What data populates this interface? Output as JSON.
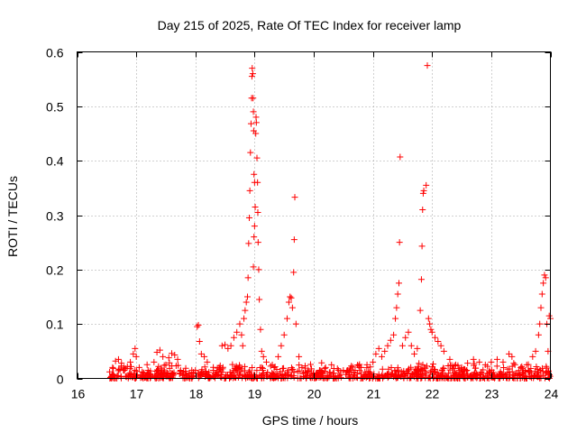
{
  "chart_data": {
    "type": "scatter",
    "title": "Day 215 of 2025, Rate Of TEC Index for receiver lamp",
    "xlabel": "GPS time / hours",
    "ylabel": "ROTI / TECUs",
    "xlim": [
      16,
      24
    ],
    "ylim": [
      0,
      0.6
    ],
    "xticks": [
      "16",
      "17",
      "18",
      "19",
      "20",
      "21",
      "22",
      "23",
      "24"
    ],
    "yticks": [
      "0",
      "0.1",
      "0.2",
      "0.3",
      "0.4",
      "0.5",
      "0.6"
    ],
    "grid": true,
    "legend": "none",
    "marker": "+",
    "color": "#ff0000",
    "series": [
      {
        "name": "ROTI",
        "points": [
          [
            16.55,
            0.012
          ],
          [
            16.6,
            0.02
          ],
          [
            16.65,
            0.032
          ],
          [
            16.7,
            0.035
          ],
          [
            16.75,
            0.028
          ],
          [
            16.8,
            0.015
          ],
          [
            16.85,
            0.022
          ],
          [
            16.9,
            0.03
          ],
          [
            16.95,
            0.045
          ],
          [
            16.98,
            0.055
          ],
          [
            17.0,
            0.04
          ],
          [
            17.05,
            0.02
          ],
          [
            17.1,
            0.012
          ],
          [
            17.2,
            0.015
          ],
          [
            17.3,
            0.03
          ],
          [
            17.35,
            0.048
          ],
          [
            17.4,
            0.052
          ],
          [
            17.45,
            0.04
          ],
          [
            17.5,
            0.025
          ],
          [
            17.55,
            0.038
          ],
          [
            17.6,
            0.046
          ],
          [
            17.65,
            0.043
          ],
          [
            17.7,
            0.035
          ],
          [
            17.75,
            0.015
          ],
          [
            17.8,
            0.012
          ],
          [
            17.9,
            0.01
          ],
          [
            18.0,
            0.015
          ],
          [
            18.03,
            0.095
          ],
          [
            18.05,
            0.098
          ],
          [
            18.07,
            0.068
          ],
          [
            18.1,
            0.045
          ],
          [
            18.15,
            0.04
          ],
          [
            18.2,
            0.03
          ],
          [
            18.3,
            0.015
          ],
          [
            18.4,
            0.02
          ],
          [
            18.45,
            0.06
          ],
          [
            18.5,
            0.062
          ],
          [
            18.55,
            0.055
          ],
          [
            18.6,
            0.06
          ],
          [
            18.65,
            0.075
          ],
          [
            18.7,
            0.085
          ],
          [
            18.75,
            0.1
          ],
          [
            18.78,
            0.08
          ],
          [
            18.8,
            0.06
          ],
          [
            18.82,
            0.11
          ],
          [
            18.84,
            0.125
          ],
          [
            18.86,
            0.14
          ],
          [
            18.88,
            0.15
          ],
          [
            18.89,
            0.185
          ],
          [
            18.9,
            0.248
          ],
          [
            18.91,
            0.295
          ],
          [
            18.92,
            0.345
          ],
          [
            18.93,
            0.415
          ],
          [
            18.94,
            0.468
          ],
          [
            18.95,
            0.515
          ],
          [
            18.955,
            0.555
          ],
          [
            18.96,
            0.57
          ],
          [
            18.97,
            0.56
          ],
          [
            18.975,
            0.515
          ],
          [
            18.98,
            0.49
          ],
          [
            18.985,
            0.455
          ],
          [
            18.99,
            0.375
          ],
          [
            19.0,
            0.36
          ],
          [
            19.01,
            0.315
          ],
          [
            19.02,
            0.45
          ],
          [
            19.025,
            0.48
          ],
          [
            19.03,
            0.47
          ],
          [
            19.04,
            0.405
          ],
          [
            19.05,
            0.36
          ],
          [
            19.055,
            0.305
          ],
          [
            19.06,
            0.25
          ],
          [
            19.07,
            0.2
          ],
          [
            19.08,
            0.145
          ],
          [
            19.1,
            0.09
          ],
          [
            19.12,
            0.05
          ],
          [
            18.98,
            0.205
          ],
          [
            18.99,
            0.26
          ],
          [
            19.0,
            0.28
          ],
          [
            19.15,
            0.04
          ],
          [
            19.2,
            0.03
          ],
          [
            19.3,
            0.025
          ],
          [
            19.4,
            0.04
          ],
          [
            19.45,
            0.06
          ],
          [
            19.5,
            0.08
          ],
          [
            19.55,
            0.11
          ],
          [
            19.58,
            0.14
          ],
          [
            19.6,
            0.15
          ],
          [
            19.62,
            0.148
          ],
          [
            19.64,
            0.13
          ],
          [
            19.66,
            0.195
          ],
          [
            19.67,
            0.255
          ],
          [
            19.68,
            0.333
          ],
          [
            19.7,
            0.1
          ],
          [
            19.75,
            0.04
          ],
          [
            19.8,
            0.02
          ],
          [
            19.9,
            0.012
          ],
          [
            20.0,
            0.01
          ],
          [
            20.1,
            0.015
          ],
          [
            20.2,
            0.02
          ],
          [
            20.3,
            0.025
          ],
          [
            20.4,
            0.018
          ],
          [
            20.5,
            0.015
          ],
          [
            20.6,
            0.012
          ],
          [
            20.7,
            0.015
          ],
          [
            20.8,
            0.02
          ],
          [
            20.9,
            0.025
          ],
          [
            21.0,
            0.03
          ],
          [
            21.05,
            0.045
          ],
          [
            21.1,
            0.055
          ],
          [
            21.15,
            0.04
          ],
          [
            21.2,
            0.05
          ],
          [
            21.25,
            0.06
          ],
          [
            21.3,
            0.07
          ],
          [
            21.35,
            0.08
          ],
          [
            21.38,
            0.11
          ],
          [
            21.4,
            0.13
          ],
          [
            21.42,
            0.155
          ],
          [
            21.44,
            0.175
          ],
          [
            21.45,
            0.25
          ],
          [
            21.46,
            0.407
          ],
          [
            21.5,
            0.06
          ],
          [
            21.55,
            0.075
          ],
          [
            21.6,
            0.085
          ],
          [
            21.65,
            0.06
          ],
          [
            21.7,
            0.045
          ],
          [
            21.75,
            0.055
          ],
          [
            21.8,
            0.125
          ],
          [
            21.82,
            0.182
          ],
          [
            21.83,
            0.243
          ],
          [
            21.84,
            0.31
          ],
          [
            21.85,
            0.34
          ],
          [
            21.86,
            0.345
          ],
          [
            21.9,
            0.355
          ],
          [
            21.92,
            0.575
          ],
          [
            21.94,
            0.11
          ],
          [
            21.96,
            0.1
          ],
          [
            21.98,
            0.09
          ],
          [
            22.0,
            0.085
          ],
          [
            22.05,
            0.075
          ],
          [
            22.1,
            0.068
          ],
          [
            22.15,
            0.06
          ],
          [
            22.2,
            0.05
          ],
          [
            22.3,
            0.035
          ],
          [
            22.4,
            0.025
          ],
          [
            22.5,
            0.02
          ],
          [
            22.6,
            0.028
          ],
          [
            22.7,
            0.035
          ],
          [
            22.8,
            0.03
          ],
          [
            22.9,
            0.025
          ],
          [
            23.0,
            0.03
          ],
          [
            23.1,
            0.035
          ],
          [
            23.2,
            0.03
          ],
          [
            23.3,
            0.045
          ],
          [
            23.35,
            0.04
          ],
          [
            23.4,
            0.025
          ],
          [
            23.5,
            0.02
          ],
          [
            23.6,
            0.025
          ],
          [
            23.7,
            0.04
          ],
          [
            23.75,
            0.05
          ],
          [
            23.8,
            0.08
          ],
          [
            23.82,
            0.1
          ],
          [
            23.84,
            0.13
          ],
          [
            23.86,
            0.155
          ],
          [
            23.88,
            0.175
          ],
          [
            23.9,
            0.19
          ],
          [
            23.92,
            0.185
          ],
          [
            23.94,
            0.1
          ],
          [
            23.96,
            0.05
          ],
          [
            23.98,
            0.115
          ],
          [
            24.0,
            0.11
          ]
        ]
      }
    ]
  }
}
